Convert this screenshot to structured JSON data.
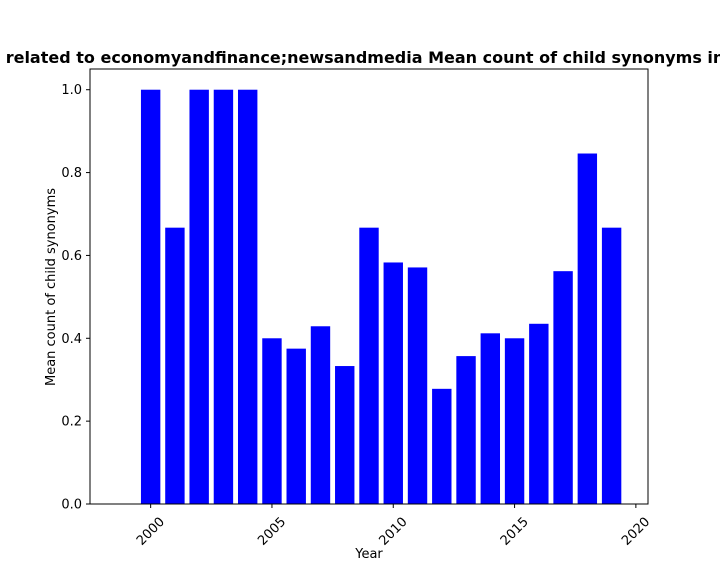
{
  "chart_data": {
    "type": "bar",
    "title": "related to economyandfinance;newsandmedia Mean count of child synonyms in",
    "xlabel": "Year",
    "ylabel": "Mean count of child synonyms",
    "x": [
      2000,
      2001,
      2002,
      2003,
      2004,
      2005,
      2006,
      2007,
      2008,
      2009,
      2010,
      2011,
      2012,
      2013,
      2014,
      2015,
      2016,
      2017,
      2018,
      2019
    ],
    "values": [
      1.0,
      0.667,
      1.0,
      1.0,
      1.0,
      0.4,
      0.375,
      0.429,
      0.333,
      0.667,
      0.583,
      0.571,
      0.278,
      0.357,
      0.412,
      0.4,
      0.435,
      0.562,
      0.846,
      0.667
    ],
    "xlim": [
      1997.5,
      2020.5
    ],
    "ylim": [
      0,
      1.05
    ],
    "xticks": [
      "2000",
      "2005",
      "2010",
      "2015",
      "2020"
    ],
    "yticks": [
      "0.0",
      "0.2",
      "0.4",
      "0.6",
      "0.8",
      "1.0"
    ],
    "bar_color": "#0000ff",
    "grid": false,
    "legend": "none"
  }
}
